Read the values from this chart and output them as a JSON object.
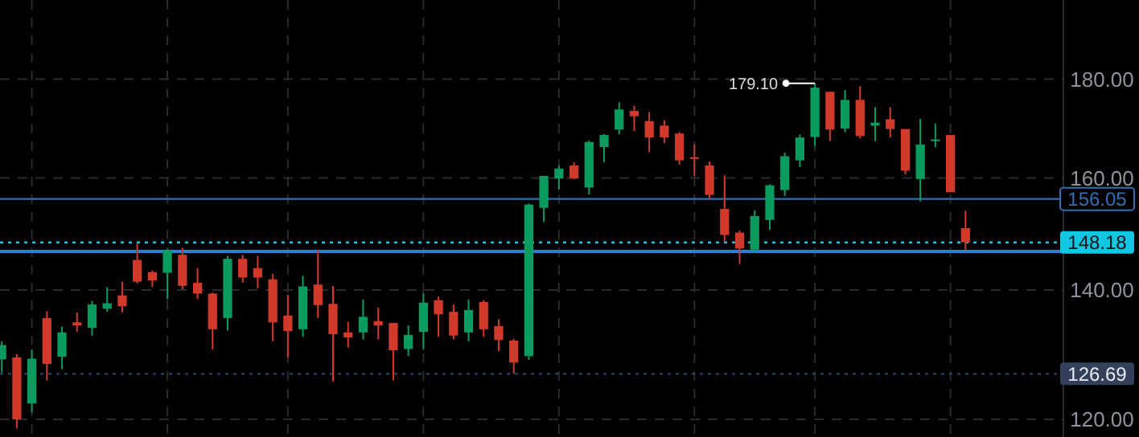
{
  "chart_data": {
    "type": "candlestick",
    "log": true,
    "grid": true,
    "categories": [
      null,
      null,
      null,
      null,
      null,
      null,
      null,
      null,
      null,
      null,
      null,
      null,
      null,
      null,
      null,
      null,
      null,
      null,
      null,
      null,
      null,
      null,
      null,
      null,
      null,
      null,
      null,
      null,
      null,
      null,
      null,
      null,
      null,
      null,
      null,
      null,
      null,
      null,
      null,
      null,
      null,
      null,
      null,
      null,
      null,
      null,
      null,
      null,
      null,
      null,
      null,
      null,
      null,
      null,
      null,
      null,
      null,
      null,
      null,
      null,
      null,
      null,
      null,
      null,
      null
    ],
    "ohlc": [
      [
        128.9,
        131.7,
        126.9,
        131.1
      ],
      [
        129.2,
        129.7,
        118.7,
        120.0
      ],
      [
        122.3,
        130.4,
        121.0,
        129.0
      ],
      [
        135.4,
        136.5,
        125.7,
        128.2
      ],
      [
        129.3,
        134.0,
        127.4,
        133.1
      ],
      [
        134.7,
        136.3,
        133.2,
        134.2
      ],
      [
        133.8,
        138.2,
        132.6,
        137.6
      ],
      [
        136.9,
        140.5,
        136.4,
        137.8
      ],
      [
        139.1,
        141.4,
        136.3,
        137.3
      ],
      [
        145.1,
        148.0,
        141.1,
        141.4
      ],
      [
        143.0,
        143.3,
        140.5,
        141.6
      ],
      [
        142.9,
        147.0,
        138.5,
        146.7
      ],
      [
        146.0,
        147.2,
        140.1,
        140.7
      ],
      [
        141.2,
        143.7,
        138.5,
        139.4
      ],
      [
        139.4,
        139.6,
        130.4,
        133.6
      ],
      [
        135.4,
        145.8,
        133.4,
        145.3
      ],
      [
        145.3,
        146.0,
        141.2,
        142.1
      ],
      [
        143.7,
        145.8,
        140.3,
        142.1
      ],
      [
        141.8,
        142.7,
        131.7,
        134.7
      ],
      [
        135.8,
        139.2,
        129.2,
        133.3
      ],
      [
        133.6,
        142.4,
        132.4,
        140.6
      ],
      [
        140.9,
        146.9,
        135.4,
        137.5
      ],
      [
        137.7,
        140.7,
        125.5,
        132.8
      ],
      [
        133.1,
        134.8,
        130.7,
        132.3
      ],
      [
        133.1,
        138.4,
        132.0,
        135.6
      ],
      [
        134.9,
        137.1,
        132.0,
        134.2
      ],
      [
        134.6,
        134.6,
        125.7,
        130.3
      ],
      [
        130.5,
        134.2,
        129.4,
        132.7
      ],
      [
        133.2,
        139.5,
        130.4,
        137.9
      ],
      [
        138.3,
        138.9,
        132.4,
        136.0
      ],
      [
        136.4,
        137.6,
        132.0,
        132.6
      ],
      [
        133.1,
        138.4,
        131.7,
        136.7
      ],
      [
        138.0,
        138.3,
        132.4,
        133.6
      ],
      [
        134.1,
        135.2,
        130.2,
        131.9
      ],
      [
        131.8,
        132.1,
        126.7,
        128.4
      ],
      [
        129.4,
        155.2,
        128.8,
        155.0
      ],
      [
        154.4,
        160.4,
        151.8,
        160.4
      ],
      [
        159.9,
        162.4,
        157.8,
        161.8
      ],
      [
        162.4,
        163.0,
        159.8,
        159.9
      ],
      [
        158.2,
        167.3,
        156.9,
        167.0
      ],
      [
        166.0,
        168.6,
        163.0,
        168.4
      ],
      [
        169.5,
        175.1,
        168.5,
        173.6
      ],
      [
        173.3,
        174.4,
        169.2,
        172.2
      ],
      [
        171.2,
        173.1,
        165.0,
        167.9
      ],
      [
        170.3,
        171.4,
        166.8,
        167.9
      ],
      [
        168.7,
        169.0,
        162.6,
        163.4
      ],
      [
        164.0,
        166.5,
        160.3,
        163.8
      ],
      [
        162.4,
        163.2,
        156.0,
        156.8
      ],
      [
        154.2,
        160.5,
        148.3,
        149.5
      ],
      [
        149.9,
        150.3,
        144.4,
        147.1
      ],
      [
        146.9,
        153.9,
        146.3,
        152.9
      ],
      [
        152.2,
        158.8,
        150.4,
        158.6
      ],
      [
        157.7,
        164.9,
        156.6,
        164.2
      ],
      [
        163.4,
        168.5,
        162.1,
        167.9
      ],
      [
        168.0,
        179.1,
        166.2,
        178.2
      ],
      [
        177.3,
        177.3,
        167.2,
        169.5
      ],
      [
        169.7,
        177.7,
        169.0,
        175.6
      ],
      [
        175.6,
        178.5,
        167.7,
        168.2
      ],
      [
        170.3,
        174.1,
        167.2,
        170.9
      ],
      [
        171.6,
        174.1,
        167.9,
        169.6
      ],
      [
        169.6,
        169.6,
        160.7,
        161.4
      ],
      [
        159.8,
        171.7,
        155.6,
        166.5
      ],
      [
        167.3,
        170.7,
        166.0,
        167.5
      ],
      [
        168.4,
        168.4,
        157.3,
        157.3
      ],
      [
        150.7,
        153.9,
        146.9,
        148.18
      ]
    ],
    "colors": [
      "#0a9c5f",
      "#d13a2b",
      "#0a9c5f",
      "#d13a2b",
      "#0a9c5f",
      "#d13a2b",
      "#0a9c5f",
      "#0a9c5f",
      "#d13a2b",
      "#d13a2b",
      "#d13a2b",
      "#0a9c5f",
      "#d13a2b",
      "#d13a2b",
      "#d13a2b",
      "#0a9c5f",
      "#d13a2b",
      "#d13a2b",
      "#d13a2b",
      "#d13a2b",
      "#0a9c5f",
      "#d13a2b",
      "#d13a2b",
      "#d13a2b",
      "#0a9c5f",
      "#d13a2b",
      "#d13a2b",
      "#0a9c5f",
      "#0a9c5f",
      "#d13a2b",
      "#d13a2b",
      "#0a9c5f",
      "#d13a2b",
      "#d13a2b",
      "#d13a2b",
      "#0a9c5f",
      "#0a9c5f",
      "#0a9c5f",
      "#d13a2b",
      "#0a9c5f",
      "#0a9c5f",
      "#0a9c5f",
      "#d13a2b",
      "#d13a2b",
      "#d13a2b",
      "#d13a2b",
      "#d13a2b",
      "#d13a2b",
      "#d13a2b",
      "#d13a2b",
      "#0a9c5f",
      "#0a9c5f",
      "#0a9c5f",
      "#0a9c5f",
      "#0a9c5f",
      "#d13a2b",
      "#0a9c5f",
      "#d13a2b",
      "#0a9c5f",
      "#d13a2b",
      "#d13a2b",
      "#0a9c5f",
      "#0a9c5f",
      "#d13a2b",
      "#d13a2b"
    ],
    "ylim": [
      117.5,
      197.8
    ],
    "yticks": [
      {
        "value": 120,
        "label": "120.00"
      },
      {
        "value": 140,
        "label": "140.00"
      },
      {
        "value": 160,
        "label": "160.00"
      },
      {
        "value": 180,
        "label": "180.00"
      }
    ],
    "ref_lines": [
      {
        "axis": "y",
        "value": 156.05,
        "label": "156.05",
        "color": "#2f6fb5",
        "line_style": "solid"
      },
      {
        "axis": "y",
        "value": 146.6,
        "label": null,
        "color": "#2a7fd8",
        "line_style": "solid"
      },
      {
        "axis": "y",
        "value": 148.18,
        "label": "148.18",
        "color": "#11c6e0",
        "line_style": "dotted"
      },
      {
        "axis": "y",
        "value": 126.69,
        "label": "126.69",
        "color": "#33405c",
        "line_style": "dotted"
      }
    ],
    "annotations": [
      "179.10"
    ]
  }
}
